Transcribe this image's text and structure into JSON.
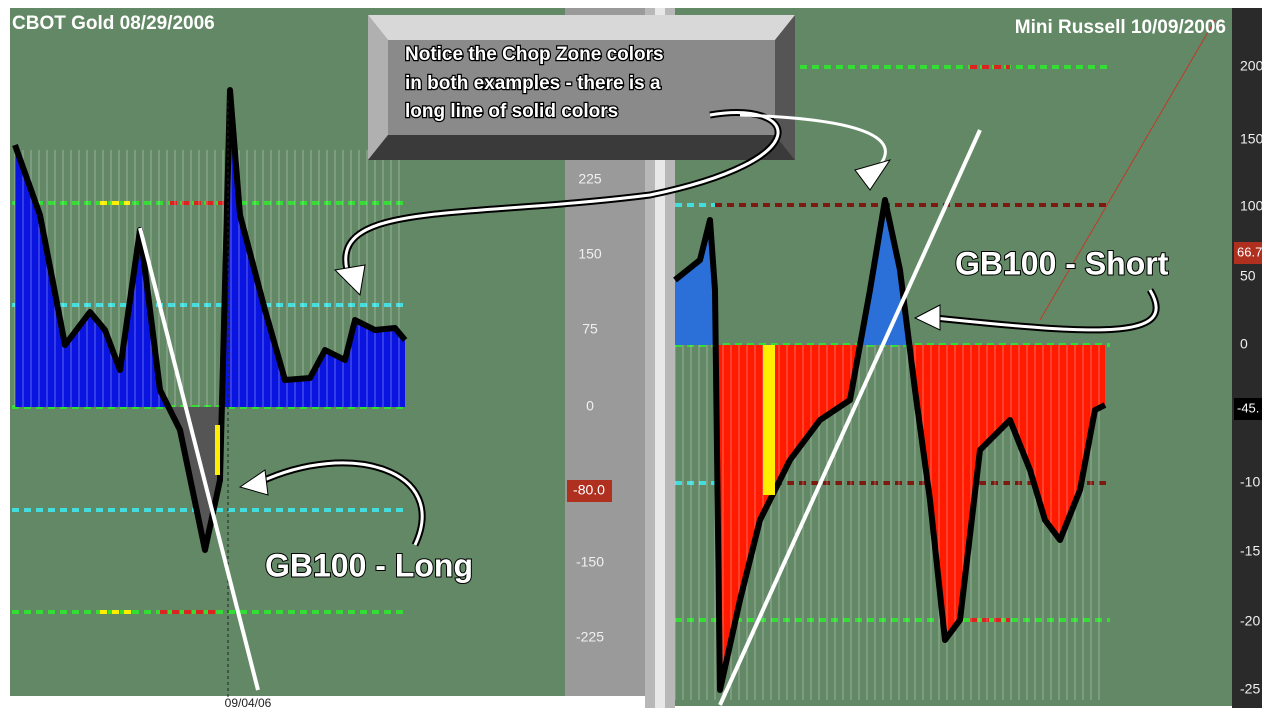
{
  "left_panel": {
    "title": "CBOT Gold 08/29/2006",
    "axis_labels": [
      "225",
      "150",
      "75",
      "0",
      "-150",
      "-225"
    ],
    "current_value": "-80.0",
    "date_label": "09/04/06",
    "annotation": "GB100 - Long"
  },
  "right_panel": {
    "title": "Mini Russell 10/09/2006",
    "axis_labels": [
      "200",
      "150",
      "100",
      "50",
      "0",
      "-10",
      "-15",
      "-20",
      "-25"
    ],
    "current_value": "66.7",
    "last_value": "-45.",
    "annotation": "GB100 - Short"
  },
  "callout": {
    "lines": [
      "Notice the Chop Zone colors",
      "in both examples - there is a",
      "long line of solid colors"
    ]
  }
}
